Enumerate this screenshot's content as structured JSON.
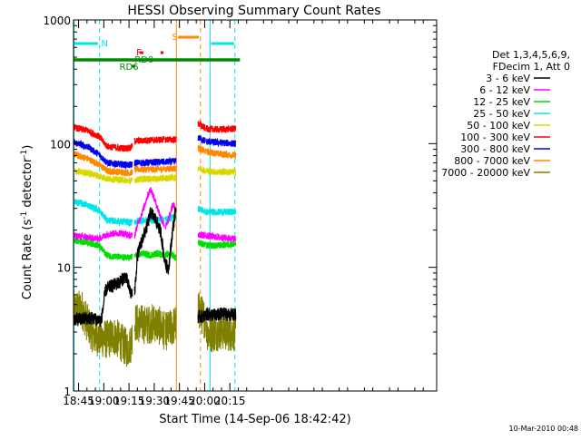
{
  "chart_data": {
    "type": "line",
    "title": "HESSI Observing Summary Count Rates",
    "xlabel": "Start Time (14-Sep-06 18:42:42)",
    "ylabel_main": "Count Rate (s",
    "ylabel_sup1": "-1",
    "ylabel_mid": " detector",
    "ylabel_sup2": "-1",
    "ylabel_end": ")",
    "y_scale": "log",
    "ylim": [
      1,
      1000
    ],
    "xlim_min": [
      1122,
      1338
    ],
    "x_ticks": [
      {
        "t": 1125,
        "label": "18:45"
      },
      {
        "t": 1140,
        "label": "19:00"
      },
      {
        "t": 1155,
        "label": "19:15"
      },
      {
        "t": 1170,
        "label": "19:30"
      },
      {
        "t": 1185,
        "label": "19:45"
      },
      {
        "t": 1200,
        "label": "20:00"
      },
      {
        "t": 1215,
        "label": "20:15"
      }
    ],
    "y_ticks": [
      {
        "v": 1,
        "label": "1"
      },
      {
        "v": 10,
        "label": "10"
      },
      {
        "v": 100,
        "label": "100"
      },
      {
        "v": 1000,
        "label": "1000"
      }
    ],
    "legend_header": [
      "Det 1,3,4,5,6,9,",
      "FDecim 1, Att 0"
    ],
    "legend_placement": "right",
    "data_gaps_min": [
      [
        1157.0,
        1158.2
      ],
      [
        1176.0,
        1176.5
      ],
      [
        1183.0,
        1196.0
      ],
      [
        1200.5,
        1201.0
      ]
    ],
    "series": [
      {
        "name": "3 - 6 keV",
        "color": "#000000",
        "x": [
          1122,
          1127,
          1131,
          1136,
          1138.5,
          1141,
          1144,
          1149,
          1153,
          1156,
          1158.3,
          1160,
          1163,
          1165.5,
          1168,
          1171,
          1174,
          1176.5,
          1178.5,
          1181,
          1182.8,
          1196,
          1200,
          1201,
          1206,
          1212,
          1218.5
        ],
        "y": [
          3.8,
          3.8,
          3.9,
          3.8,
          3.7,
          6.5,
          7.0,
          7.5,
          8.5,
          6.2,
          6.0,
          12.5,
          17.0,
          21.0,
          28.0,
          24.0,
          19.0,
          10.5,
          9.8,
          20.0,
          30.0,
          4.0,
          4.0,
          4.2,
          4.1,
          4.2,
          4.1
        ]
      },
      {
        "name": "6 - 12 keV",
        "color": "#ff00ff",
        "x": [
          1122,
          1130,
          1137,
          1142,
          1150,
          1156,
          1158.3,
          1160,
          1163,
          1166,
          1168,
          1171,
          1174,
          1176.5,
          1178,
          1181,
          1182.8,
          1196,
          1201,
          1208,
          1218.5
        ],
        "y": [
          18.0,
          17.5,
          17.0,
          18.5,
          19.0,
          18.0,
          18.0,
          22.0,
          28.0,
          38.0,
          43.0,
          33.0,
          25.0,
          21.0,
          23.0,
          32.0,
          30.0,
          18.5,
          18.0,
          17.5,
          17.0
        ]
      },
      {
        "name": "12 - 25 keV",
        "color": "#00dd00",
        "x": [
          1122,
          1130,
          1137,
          1142,
          1150,
          1156,
          1158.3,
          1160,
          1163,
          1168,
          1172,
          1176.5,
          1180,
          1182.8,
          1196,
          1201,
          1208,
          1218.5
        ],
        "y": [
          16.5,
          16.0,
          15.0,
          12.5,
          12.0,
          12.0,
          12.5,
          12.5,
          13.0,
          12.5,
          13.0,
          12.5,
          13.0,
          12.0,
          16.0,
          15.0,
          15.0,
          15.5
        ]
      },
      {
        "name": "25 - 50 keV",
        "color": "#00e5e5",
        "x": [
          1122,
          1130,
          1137,
          1142,
          1150,
          1156,
          1158.3,
          1165,
          1172,
          1176.5,
          1180,
          1182.8,
          1196,
          1201,
          1208,
          1218.5
        ],
        "y": [
          34.0,
          32.0,
          29.0,
          24.0,
          23.5,
          23.0,
          23.5,
          24.0,
          24.0,
          24.5,
          25.0,
          25.5,
          30.0,
          28.0,
          28.0,
          28.0
        ]
      },
      {
        "name": "50 - 100 keV",
        "color": "#d8d800",
        "x": [
          1122,
          1130,
          1137,
          1142,
          1150,
          1156,
          1158.3,
          1165,
          1172,
          1176.5,
          1180,
          1182.8,
          1196,
          1201,
          1208,
          1218.5
        ],
        "y": [
          60.0,
          58.0,
          55.0,
          52.0,
          51.0,
          50.0,
          51.0,
          52.0,
          52.0,
          52.5,
          53.0,
          53.0,
          64.0,
          60.0,
          59.0,
          59.0
        ]
      },
      {
        "name": "100 - 300 keV",
        "color": "#ff0000",
        "x": [
          1122,
          1130,
          1137,
          1142,
          1150,
          1156,
          1158.3,
          1165,
          1172,
          1176.5,
          1180,
          1182.8,
          1196,
          1201,
          1208,
          1218.5
        ],
        "y": [
          135.0,
          128.0,
          115.0,
          95.0,
          92.0,
          92.0,
          105.0,
          106.0,
          107.0,
          108.0,
          108.0,
          108.0,
          145.0,
          132.0,
          130.0,
          132.0
        ]
      },
      {
        "name": "300 - 800 keV",
        "color": "#0000ee",
        "x": [
          1122,
          1130,
          1137,
          1142,
          1150,
          1156,
          1158.3,
          1165,
          1172,
          1176.5,
          1180,
          1182.8,
          1196,
          1201,
          1208,
          1218.5
        ],
        "y": [
          102.0,
          95.0,
          82.0,
          70.0,
          68.0,
          67.0,
          70.0,
          70.0,
          71.0,
          71.0,
          71.5,
          72.0,
          112.0,
          104.0,
          102.0,
          100.0
        ]
      },
      {
        "name": "800 - 7000 keV",
        "color": "#ff8800",
        "x": [
          1122,
          1130,
          1137,
          1142,
          1150,
          1156,
          1158.3,
          1165,
          1172,
          1176.5,
          1180,
          1182.8,
          1196,
          1201,
          1208,
          1218.5
        ],
        "y": [
          82.0,
          76.0,
          68.0,
          60.0,
          59.0,
          58.0,
          62.0,
          62.0,
          62.0,
          62.5,
          63.0,
          63.0,
          92.0,
          86.0,
          83.0,
          80.0
        ]
      },
      {
        "name": "7000 - 20000 keV",
        "color": "#808000",
        "x": [
          1122,
          1127,
          1130,
          1134,
          1138,
          1142,
          1146,
          1150,
          1154,
          1156,
          1158.3,
          1162,
          1166,
          1170,
          1174,
          1176.5,
          1180,
          1182.8,
          1196,
          1200,
          1202,
          1206,
          1210,
          1214,
          1218.5
        ],
        "y": [
          4.5,
          4.6,
          3.6,
          2.8,
          2.7,
          2.6,
          2.8,
          2.5,
          2.2,
          2.4,
          3.6,
          3.5,
          3.4,
          3.6,
          3.3,
          3.0,
          3.2,
          3.5,
          4.6,
          3.8,
          2.9,
          3.0,
          3.1,
          3.0,
          3.0
        ]
      }
    ],
    "flag_lines": [
      {
        "label": "N",
        "color": "#00e5e5",
        "vline_min": [
          1137.5,
          1203.2
        ],
        "bar_min": [
          [
            1122,
            1136.5
          ],
          [
            1203.8,
            1217.5
          ]
        ],
        "label_t": 1138.5
      },
      {
        "label": "S",
        "color": "#ff8800",
        "vline_min": [
          1183.2,
          1197.5
        ],
        "bar_min": [
          [
            1184.2,
            1196.5
          ]
        ],
        "label_t": 1180.5
      },
      {
        "label": "F",
        "color": "#ff0000",
        "bar_min": [
          [
            1161.3,
            1163.5
          ]
        ],
        "label_t": 1159.3
      },
      {
        "label": "RD0",
        "color": "#008800",
        "bar_min": [
          [
            1122,
            1221
          ]
        ],
        "label_t": 1158.3
      },
      {
        "label": "RD6",
        "color": "#008800",
        "bar_min": [
          [
            1156.3,
            1158.8
          ]
        ],
        "label_t": 1149.3
      },
      {
        "label": "",
        "color": "#ff0000",
        "bar_min": [
          [
            1173.8,
            1175.5
          ]
        ]
      }
    ]
  },
  "footer_timestamp": "10-Mar-2010 00:48"
}
